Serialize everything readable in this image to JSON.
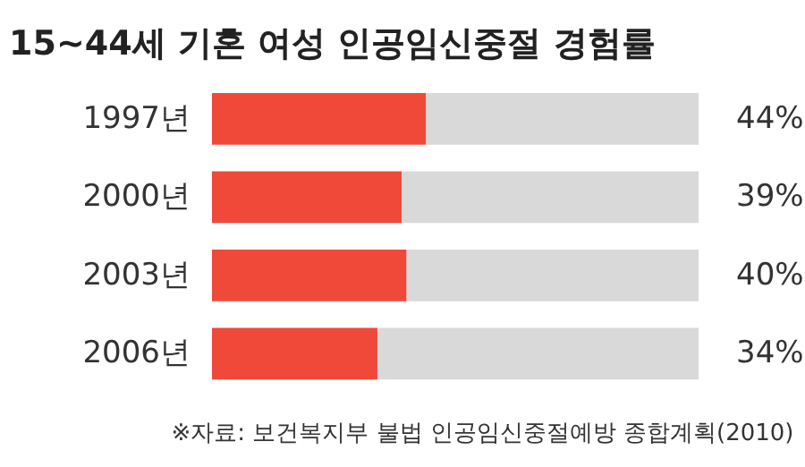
{
  "chart_data": {
    "type": "bar",
    "orientation": "horizontal",
    "stacked": true,
    "title": "15~44세 기혼 여성 인공임신중절 경험률",
    "categories": [
      "1997년",
      "2000년",
      "2003년",
      "2006년"
    ],
    "series": [
      {
        "color": "#f0493a",
        "values": [
          44,
          39,
          40,
          34
        ],
        "value_labels": [
          "44%",
          "39%",
          "40%",
          "34%"
        ]
      },
      {
        "color": "#d9d9d9",
        "values": [
          56,
          61,
          60,
          66
        ]
      }
    ],
    "xlim": [
      0,
      100
    ],
    "tick_labels": "y",
    "grid": false,
    "annotations": [
      "※자료: 보건복지부 불법 인공임신중절예방 종합계획(2010)"
    ]
  }
}
